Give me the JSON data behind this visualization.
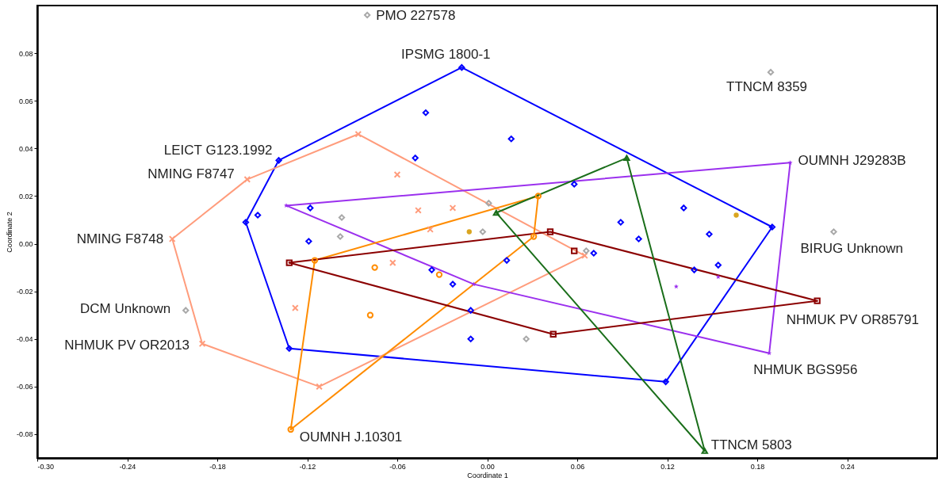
{
  "chart_data": {
    "type": "scatter",
    "xlabel": "Coordinate 1",
    "ylabel": "Coordinate 2",
    "xlim": [
      -0.3,
      0.3
    ],
    "ylim": [
      -0.09,
      0.1
    ],
    "xticks": [
      {
        "value": -0.3,
        "label": "-0.30"
      },
      {
        "value": -0.24,
        "label": "-0.24"
      },
      {
        "value": -0.18,
        "label": "-0.18"
      },
      {
        "value": -0.12,
        "label": "-0.12"
      },
      {
        "value": -0.06,
        "label": "-0.06"
      },
      {
        "value": 0,
        "label": "0.00"
      },
      {
        "value": 0.06,
        "label": "0.06"
      },
      {
        "value": 0.12,
        "label": "0.12"
      },
      {
        "value": 0.18,
        "label": "0.18"
      },
      {
        "value": 0.24,
        "label": "0.24"
      }
    ],
    "yticks": [
      {
        "value": -0.08,
        "label": "-0.08"
      },
      {
        "value": -0.06,
        "label": "-0.06"
      },
      {
        "value": -0.04,
        "label": "-0.04"
      },
      {
        "value": -0.02,
        "label": "-0.02"
      },
      {
        "value": 0,
        "label": "0.00"
      },
      {
        "value": 0.02,
        "label": "0.02"
      },
      {
        "value": 0.04,
        "label": "0.04"
      },
      {
        "value": 0.06,
        "label": "0.06"
      },
      {
        "value": 0.08,
        "label": "0.08"
      }
    ],
    "grid": false,
    "series": [
      {
        "type": "line",
        "marker": "none",
        "color": "#0000ff",
        "x": [
          -0.161,
          -0.139,
          -0.017,
          0.19
        ],
        "values": [
          0.009,
          0.035,
          0.074,
          0.007
        ]
      },
      {
        "type": "line",
        "marker": "none",
        "color": "#0000ff",
        "x": [
          -0.161,
          -0.132,
          0.119,
          0.19
        ],
        "values": [
          0.009,
          -0.044,
          -0.058,
          0.007
        ]
      },
      {
        "type": "line",
        "marker": "none",
        "color": "#ff9c7c",
        "x": [
          -0.21,
          -0.16,
          -0.086,
          0.065
        ],
        "values": [
          0.002,
          0.027,
          0.046,
          -0.005
        ]
      },
      {
        "type": "line",
        "marker": "none",
        "color": "#ff9c7c",
        "x": [
          -0.21,
          -0.19,
          -0.112,
          0.065
        ],
        "values": [
          0.002,
          -0.042,
          -0.06,
          -0.005
        ]
      },
      {
        "type": "line",
        "marker": "none",
        "color": "#9b30ee",
        "x": [
          -0.134,
          0.202
        ],
        "values": [
          0.016,
          0.034
        ]
      },
      {
        "type": "line",
        "marker": "none",
        "color": "#9b30ee",
        "x": [
          -0.134,
          -0.009,
          0.188,
          0.202
        ],
        "values": [
          0.016,
          -0.017,
          -0.046,
          0.034
        ]
      },
      {
        "type": "line",
        "marker": "none",
        "color": "#ff8c00",
        "x": [
          -0.131,
          -0.115,
          0.034
        ],
        "values": [
          -0.078,
          -0.007,
          0.02
        ]
      },
      {
        "type": "line",
        "marker": "none",
        "color": "#ff8c00",
        "x": [
          -0.131,
          0.031,
          0.034
        ],
        "values": [
          -0.078,
          0.003,
          0.02
        ]
      },
      {
        "type": "line",
        "marker": "none",
        "color": "#8b0000",
        "x": [
          -0.132,
          0.042,
          0.22
        ],
        "values": [
          -0.008,
          0.005,
          -0.024
        ]
      },
      {
        "type": "line",
        "marker": "none",
        "color": "#8b0000",
        "x": [
          -0.132,
          0.044,
          0.22
        ],
        "values": [
          -0.008,
          -0.038,
          -0.024
        ]
      },
      {
        "type": "line",
        "marker": "none",
        "color": "#1a6e1a",
        "x": [
          0.006,
          0.093,
          0.145
        ],
        "values": [
          0.013,
          0.036,
          -0.087
        ]
      },
      {
        "type": "line",
        "marker": "none",
        "color": "#1a6e1a",
        "x": [
          0.006,
          0.145
        ],
        "values": [
          0.013,
          -0.087
        ]
      },
      {
        "type": "scatter",
        "marker": "diamond",
        "color": "#0000ff",
        "x": [
          -0.017,
          -0.139,
          -0.161,
          -0.153,
          -0.118,
          -0.119,
          -0.132,
          -0.041,
          0.016,
          -0.048,
          0.058,
          0.089,
          0.101,
          0.131,
          0.148,
          0.19,
          0.138,
          0.154,
          0.119,
          -0.037,
          -0.023,
          0.013,
          -0.011,
          -0.011,
          0.071
        ],
        "values": [
          0.074,
          0.035,
          0.009,
          0.012,
          0.015,
          0.001,
          -0.044,
          0.055,
          0.044,
          0.036,
          0.025,
          0.009,
          0.002,
          0.015,
          0.004,
          0.007,
          -0.011,
          -0.009,
          -0.058,
          -0.011,
          -0.017,
          -0.007,
          -0.028,
          -0.04,
          -0.004
        ]
      },
      {
        "type": "scatter",
        "marker": "cross",
        "color": "#ff9c7c",
        "x": [
          -0.16,
          -0.21,
          -0.086,
          -0.06,
          -0.046,
          -0.023,
          -0.038,
          -0.063,
          -0.128,
          -0.19,
          -0.112,
          0.065
        ],
        "values": [
          0.027,
          0.002,
          0.046,
          0.029,
          0.014,
          0.015,
          0.006,
          -0.008,
          -0.027,
          -0.042,
          -0.06,
          -0.005
        ]
      },
      {
        "type": "scatter",
        "marker": "star",
        "color": "#9b30ee",
        "x": [
          -0.134,
          0.202,
          0.188,
          -0.009,
          0.126,
          0.154
        ],
        "values": [
          0.016,
          0.034,
          -0.046,
          -0.017,
          -0.018,
          -0.014
        ]
      },
      {
        "type": "scatter",
        "marker": "circle",
        "color": "#ff8c00",
        "x": [
          -0.131,
          -0.115,
          0.034,
          0.031,
          -0.075,
          -0.032,
          -0.078
        ],
        "values": [
          -0.078,
          -0.007,
          0.02,
          0.003,
          -0.01,
          -0.013,
          -0.03
        ]
      },
      {
        "type": "scatter",
        "marker": "square",
        "color": "#8b0000",
        "x": [
          -0.132,
          0.042,
          0.058,
          0.044,
          0.22
        ],
        "values": [
          -0.008,
          0.005,
          -0.003,
          -0.038,
          -0.024
        ]
      },
      {
        "type": "scatter",
        "marker": "triangle",
        "color": "#1a6e1a",
        "x": [
          0.006,
          0.093,
          0.145
        ],
        "values": [
          0.013,
          0.036,
          -0.087
        ]
      },
      {
        "type": "scatter",
        "marker": "diamond",
        "color": "#a9a9a9",
        "x": [
          -0.08,
          0.189,
          0.231,
          -0.201,
          -0.097,
          -0.098,
          0.001,
          -0.003,
          0.026,
          0.066
        ],
        "values": [
          0.096,
          0.072,
          0.005,
          -0.028,
          0.011,
          0.003,
          0.017,
          0.005,
          -0.04,
          -0.003
        ]
      },
      {
        "type": "scatter",
        "marker": "circle",
        "color": "#daa520",
        "x": [
          -0.012,
          0.166
        ],
        "values": [
          0.005,
          0.012
        ]
      }
    ],
    "annotations": [
      {
        "text": "PMO 227578",
        "x": -0.08,
        "y": 0.096
      },
      {
        "text": "IPSMG 1800-1",
        "x": -0.017,
        "y": 0.074
      },
      {
        "text": "TTNCM 8359",
        "x": 0.189,
        "y": 0.072
      },
      {
        "text": "LEICT G123.1992",
        "x": -0.139,
        "y": 0.035
      },
      {
        "text": "NMING F8747",
        "x": -0.16,
        "y": 0.027
      },
      {
        "text": "OUMNH J29283B",
        "x": 0.202,
        "y": 0.034
      },
      {
        "text": "NMING F8748",
        "x": -0.21,
        "y": 0.002
      },
      {
        "text": "BIRUG Unknown",
        "x": 0.231,
        "y": 0.005
      },
      {
        "text": "DCM Unknown",
        "x": -0.201,
        "y": -0.028
      },
      {
        "text": "NHMUK PV OR2013",
        "x": -0.19,
        "y": -0.042
      },
      {
        "text": "NHMUK PV OR85791",
        "x": 0.22,
        "y": -0.024
      },
      {
        "text": "NHMUK BGS956",
        "x": 0.188,
        "y": -0.046
      },
      {
        "text": "OUMNH J.10301",
        "x": -0.131,
        "y": -0.078
      },
      {
        "text": "TTNCM 5803",
        "x": 0.145,
        "y": -0.087
      }
    ]
  }
}
